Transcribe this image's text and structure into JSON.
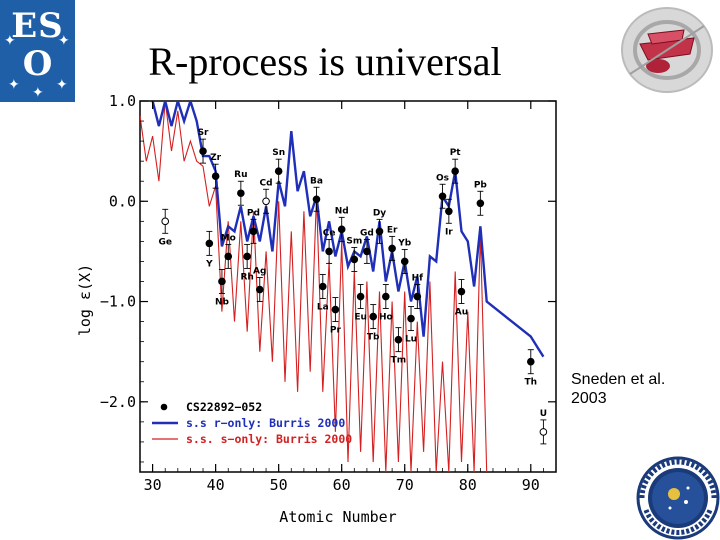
{
  "slide": {
    "title": "R-process is universal",
    "credit_line1": "Sneden et al.",
    "credit_line2": "2003"
  },
  "logos": {
    "eso_line1": "ES",
    "eso_line2": "O"
  },
  "colors": {
    "r_only": "#1f2fb8",
    "s_only": "#d42020",
    "stars": "#000000",
    "eso_blue": "#1f5fa8"
  },
  "chart_data": {
    "type": "scatter",
    "xlabel": "Atomic Number",
    "ylabel": "log ε(X)",
    "xlim": [
      28,
      94
    ],
    "ylim": [
      -2.7,
      1.0
    ],
    "xticks": [
      "30",
      "40",
      "50",
      "60",
      "70",
      "80",
      "90"
    ],
    "yticks": [
      "1.0",
      "0.0",
      "−1.0",
      "−2.0"
    ],
    "ytick_values": [
      1.0,
      0.0,
      -1.0,
      -2.0
    ],
    "xtick_values": [
      30,
      40,
      50,
      60,
      70,
      80,
      90
    ],
    "legend": [
      {
        "name": "CS22892−052",
        "kind": "marker"
      },
      {
        "name": "s.s r−only: Burris 2000",
        "kind": "line",
        "color": "#1f2fb8"
      },
      {
        "name": "s.s. s−only: Burris 2000",
        "kind": "line",
        "color": "#d42020"
      }
    ],
    "series": [
      {
        "name": "s.s r−only: Burris 2000",
        "x": [
          30,
          31,
          32,
          33,
          34,
          35,
          36,
          37,
          38,
          39,
          40,
          41,
          42,
          43,
          44,
          45,
          46,
          47,
          48,
          49,
          50,
          51,
          52,
          53,
          54,
          55,
          56,
          57,
          58,
          59,
          60,
          61,
          62,
          63,
          64,
          65,
          66,
          67,
          68,
          69,
          70,
          71,
          72,
          73,
          74,
          75,
          76,
          77,
          78,
          79,
          80,
          81,
          82,
          83,
          84,
          85,
          86,
          87,
          88,
          89,
          90,
          91,
          92
        ],
        "values": [
          1.0,
          0.75,
          1.0,
          0.75,
          1.0,
          0.8,
          1.0,
          0.8,
          0.45,
          0.45,
          0.3,
          -0.45,
          -0.25,
          -0.3,
          -0.05,
          -0.4,
          -0.15,
          -0.4,
          -0.05,
          -0.5,
          0.2,
          -0.05,
          0.7,
          0.1,
          0.3,
          -0.15,
          0.05,
          -0.5,
          -0.2,
          -0.55,
          -0.3,
          -0.65,
          -0.5,
          -0.55,
          -0.35,
          -0.7,
          -0.2,
          -0.8,
          -0.5,
          -0.9,
          -0.6,
          -1.0,
          -0.75,
          -1.35,
          -0.55,
          -0.6,
          0.05,
          -0.05,
          0.3,
          -0.3,
          -0.4,
          -0.85,
          -0.25,
          -1.0,
          -1.05,
          -1.1,
          -1.15,
          -1.2,
          -1.25,
          -1.3,
          -1.35,
          -1.45,
          -1.55
        ]
      },
      {
        "name": "s.s. s−only: Burris 2000",
        "x": [
          28,
          29,
          30,
          31,
          32,
          33,
          34,
          35,
          36,
          37,
          38,
          39,
          40,
          41,
          42,
          43,
          44,
          45,
          46,
          47,
          48,
          49,
          50,
          51,
          52,
          53,
          54,
          55,
          56,
          57,
          58,
          59,
          60,
          61,
          62,
          63,
          64,
          65,
          66,
          67,
          68,
          69,
          70,
          71,
          72,
          73,
          74,
          75,
          76,
          77,
          78,
          79,
          80,
          81,
          82,
          83
        ],
        "values": [
          0.85,
          0.4,
          0.65,
          0.2,
          1.0,
          0.5,
          0.9,
          0.4,
          0.6,
          0.4,
          0.35,
          -0.05,
          0.15,
          -1.1,
          -0.2,
          -1.2,
          -0.2,
          -1.3,
          -0.1,
          -1.5,
          -0.5,
          -1.6,
          0.0,
          -1.8,
          -0.3,
          -1.9,
          -0.1,
          -1.7,
          0.05,
          -1.9,
          -0.6,
          -2.3,
          -0.4,
          -2.6,
          -0.7,
          -2.5,
          -0.8,
          -2.6,
          -0.9,
          -2.7,
          -1.0,
          -2.6,
          -0.9,
          -2.7,
          -1.2,
          -2.5,
          -0.8,
          -2.7,
          -1.6,
          -2.7,
          -0.7,
          -2.6,
          -1.1,
          -2.7,
          -0.3,
          -2.7
        ]
      }
    ],
    "stars": [
      {
        "el": "Ge",
        "z": 32,
        "y": -0.2,
        "open": true,
        "label_pos": "below"
      },
      {
        "el": "Sr",
        "z": 38,
        "y": 0.5,
        "label_pos": "above"
      },
      {
        "el": "Y",
        "z": 39,
        "y": -0.42,
        "label_pos": "below"
      },
      {
        "el": "Zr",
        "z": 40,
        "y": 0.25,
        "label_pos": "above"
      },
      {
        "el": "Nb",
        "z": 41,
        "y": -0.8,
        "label_pos": "below"
      },
      {
        "el": "Mo",
        "z": 42,
        "y": -0.55,
        "label_pos": "above"
      },
      {
        "el": "Ru",
        "z": 44,
        "y": 0.08,
        "label_pos": "above"
      },
      {
        "el": "Rh",
        "z": 45,
        "y": -0.55,
        "label_pos": "below"
      },
      {
        "el": "Pd",
        "z": 46,
        "y": -0.3,
        "label_pos": "above"
      },
      {
        "el": "Ag",
        "z": 47,
        "y": -0.88,
        "label_pos": "above"
      },
      {
        "el": "Cd",
        "z": 48,
        "y": 0.0,
        "open": true,
        "label_pos": "above"
      },
      {
        "el": "Sn",
        "z": 50,
        "y": 0.3,
        "label_pos": "above"
      },
      {
        "el": "Ba",
        "z": 56,
        "y": 0.02,
        "label_pos": "above"
      },
      {
        "el": "La",
        "z": 57,
        "y": -0.85,
        "label_pos": "below"
      },
      {
        "el": "Ce",
        "z": 58,
        "y": -0.5,
        "label_pos": "above"
      },
      {
        "el": "Pr",
        "z": 59,
        "y": -1.08,
        "label_pos": "below"
      },
      {
        "el": "Nd",
        "z": 60,
        "y": -0.28,
        "label_pos": "above"
      },
      {
        "el": "Sm",
        "z": 62,
        "y": -0.58,
        "label_pos": "above"
      },
      {
        "el": "Eu",
        "z": 63,
        "y": -0.95,
        "label_pos": "below"
      },
      {
        "el": "Gd",
        "z": 64,
        "y": -0.5,
        "label_pos": "above"
      },
      {
        "el": "Tb",
        "z": 65,
        "y": -1.15,
        "label_pos": "below"
      },
      {
        "el": "Dy",
        "z": 66,
        "y": -0.3,
        "label_pos": "above"
      },
      {
        "el": "Ho",
        "z": 67,
        "y": -0.95,
        "label_pos": "below"
      },
      {
        "el": "Er",
        "z": 68,
        "y": -0.47,
        "label_pos": "above"
      },
      {
        "el": "Tm",
        "z": 69,
        "y": -1.38,
        "label_pos": "below"
      },
      {
        "el": "Yb",
        "z": 70,
        "y": -0.6,
        "label_pos": "above"
      },
      {
        "el": "Lu",
        "z": 71,
        "y": -1.17,
        "label_pos": "below"
      },
      {
        "el": "Hf",
        "z": 72,
        "y": -0.95,
        "label_pos": "above"
      },
      {
        "el": "Os",
        "z": 76,
        "y": 0.05,
        "label_pos": "above"
      },
      {
        "el": "Ir",
        "z": 77,
        "y": -0.1,
        "label_pos": "below"
      },
      {
        "el": "Pt",
        "z": 78,
        "y": 0.3,
        "label_pos": "above"
      },
      {
        "el": "Au",
        "z": 79,
        "y": -0.9,
        "label_pos": "below"
      },
      {
        "el": "Pb",
        "z": 82,
        "y": -0.02,
        "label_pos": "above"
      },
      {
        "el": "Th",
        "z": 90,
        "y": -1.6,
        "label_pos": "below"
      },
      {
        "el": "U",
        "z": 92,
        "y": -2.3,
        "open": true,
        "label_pos": "above"
      }
    ]
  }
}
